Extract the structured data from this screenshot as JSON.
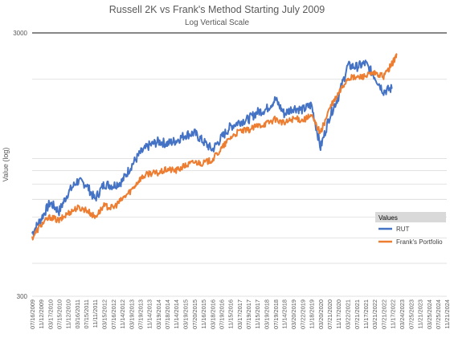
{
  "chart_data": {
    "type": "line",
    "title": "Russell 2K vs Frank's Method Starting July 2009",
    "subtitle": "Log Vertical Scale",
    "xlabel": "",
    "ylabel": "Value (log)",
    "yscale": "log",
    "ylim": [
      300,
      3000
    ],
    "ytick_labels": [
      "3000",
      "300"
    ],
    "grid": true,
    "legend_title": "Values",
    "legend_position": "right",
    "x_tick_labels": [
      "07/16/2009",
      "11/12/2009",
      "03/17/2010",
      "07/15/2010",
      "11/12/2010",
      "03/16/2011",
      "07/15/2011",
      "11/11/2011",
      "03/15/2012",
      "07/16/2012",
      "11/14/2012",
      "03/19/2013",
      "07/19/2013",
      "11/14/2013",
      "03/19/2014",
      "07/18/2014",
      "11/14/2014",
      "03/19/2015",
      "07/20/2015",
      "11/16/2015",
      "03/18/2016",
      "07/19/2016",
      "11/15/2016",
      "03/17/2017",
      "07/19/2017",
      "11/15/2017",
      "03/19/2018",
      "07/19/2018",
      "11/14/2018",
      "03/20/2019",
      "07/22/2019",
      "11/18/2019",
      "03/20/2020",
      "07/21/2020",
      "11/17/2020",
      "03/22/2021",
      "07/21/2021",
      "11/17/2021",
      "03/21/2022",
      "07/21/2022",
      "11/17/2022",
      "03/24/2023",
      "07/25/2023",
      "11/21/2023",
      "03/25/2024",
      "07/25/2024",
      "11/21/2024"
    ],
    "series": [
      {
        "name": "RUT",
        "color": "#4472c4",
        "x": [
          "2009-07-16",
          "2009-11-12",
          "2010-03-17",
          "2010-07-15",
          "2010-11-12",
          "2011-03-16",
          "2011-07-15",
          "2011-11-11",
          "2012-03-15",
          "2012-07-16",
          "2012-11-14",
          "2013-03-19",
          "2013-07-19",
          "2013-11-14",
          "2014-03-19",
          "2014-07-18",
          "2014-11-14",
          "2015-03-19",
          "2015-07-20",
          "2015-11-16",
          "2016-03-18",
          "2016-07-19",
          "2016-11-15",
          "2017-03-17",
          "2017-07-19",
          "2017-11-15",
          "2018-03-19",
          "2018-07-19",
          "2018-11-14",
          "2019-03-20",
          "2019-07-22",
          "2019-11-18",
          "2020-03-20",
          "2020-07-21",
          "2020-11-17",
          "2021-03-22",
          "2021-07-21",
          "2021-11-17",
          "2022-03-21",
          "2022-07-21",
          "2022-11-17"
        ],
        "y": [
          520,
          590,
          680,
          630,
          740,
          820,
          800,
          700,
          800,
          790,
          820,
          940,
          1050,
          1120,
          1160,
          1140,
          1170,
          1230,
          1250,
          1160,
          1080,
          1200,
          1320,
          1380,
          1410,
          1500,
          1540,
          1680,
          1480,
          1560,
          1530,
          1600,
          1100,
          1450,
          1720,
          2250,
          2230,
          2300,
          2050,
          1800,
          1850
        ]
      },
      {
        "name": "Frank's Portfolio",
        "color": "#ed7d31",
        "x": [
          "2009-07-16",
          "2009-11-12",
          "2010-03-17",
          "2010-07-15",
          "2010-11-12",
          "2011-03-16",
          "2011-07-15",
          "2011-11-11",
          "2012-03-15",
          "2012-07-16",
          "2012-11-14",
          "2013-03-19",
          "2013-07-19",
          "2013-11-14",
          "2014-03-19",
          "2014-07-18",
          "2014-11-14",
          "2015-03-19",
          "2015-07-20",
          "2015-11-16",
          "2016-03-18",
          "2016-07-19",
          "2016-11-15",
          "2017-03-17",
          "2017-07-19",
          "2017-11-15",
          "2018-03-19",
          "2018-07-19",
          "2018-11-14",
          "2019-03-20",
          "2019-07-22",
          "2019-11-18",
          "2020-03-20",
          "2020-07-21",
          "2020-11-17",
          "2021-03-22",
          "2021-07-21",
          "2021-11-17",
          "2022-03-21",
          "2022-07-21",
          "2022-11-17",
          "2023-01-15"
        ],
        "y": [
          500,
          560,
          600,
          580,
          620,
          650,
          640,
          600,
          660,
          650,
          700,
          760,
          840,
          880,
          880,
          910,
          900,
          940,
          970,
          960,
          990,
          1090,
          1200,
          1270,
          1280,
          1330,
          1360,
          1410,
          1360,
          1420,
          1400,
          1450,
          1250,
          1550,
          1760,
          2020,
          2030,
          2060,
          2100,
          2050,
          2300,
          2480
        ]
      }
    ]
  }
}
